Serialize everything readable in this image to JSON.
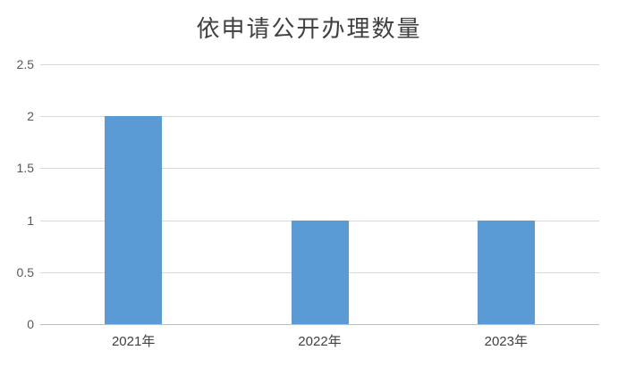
{
  "chart_data": {
    "type": "bar",
    "title": "依申请公开办理数量",
    "categories": [
      "2021年",
      "2022年",
      "2023年"
    ],
    "values": [
      2,
      1,
      1
    ],
    "y_ticks": [
      0,
      0.5,
      1,
      1.5,
      2,
      2.5
    ],
    "ylim": [
      0,
      2.5
    ],
    "xlabel": "",
    "ylabel": "",
    "grid": "horizontal gridlines on",
    "legend": "none",
    "colors": {
      "bar": "#5b9bd5",
      "gridline": "#d9d9d9",
      "axis_line": "#bfbfbf",
      "title_text": "#404040",
      "y_tick_text": "#595959",
      "x_tick_text": "#404040",
      "background": "#ffffff"
    }
  }
}
